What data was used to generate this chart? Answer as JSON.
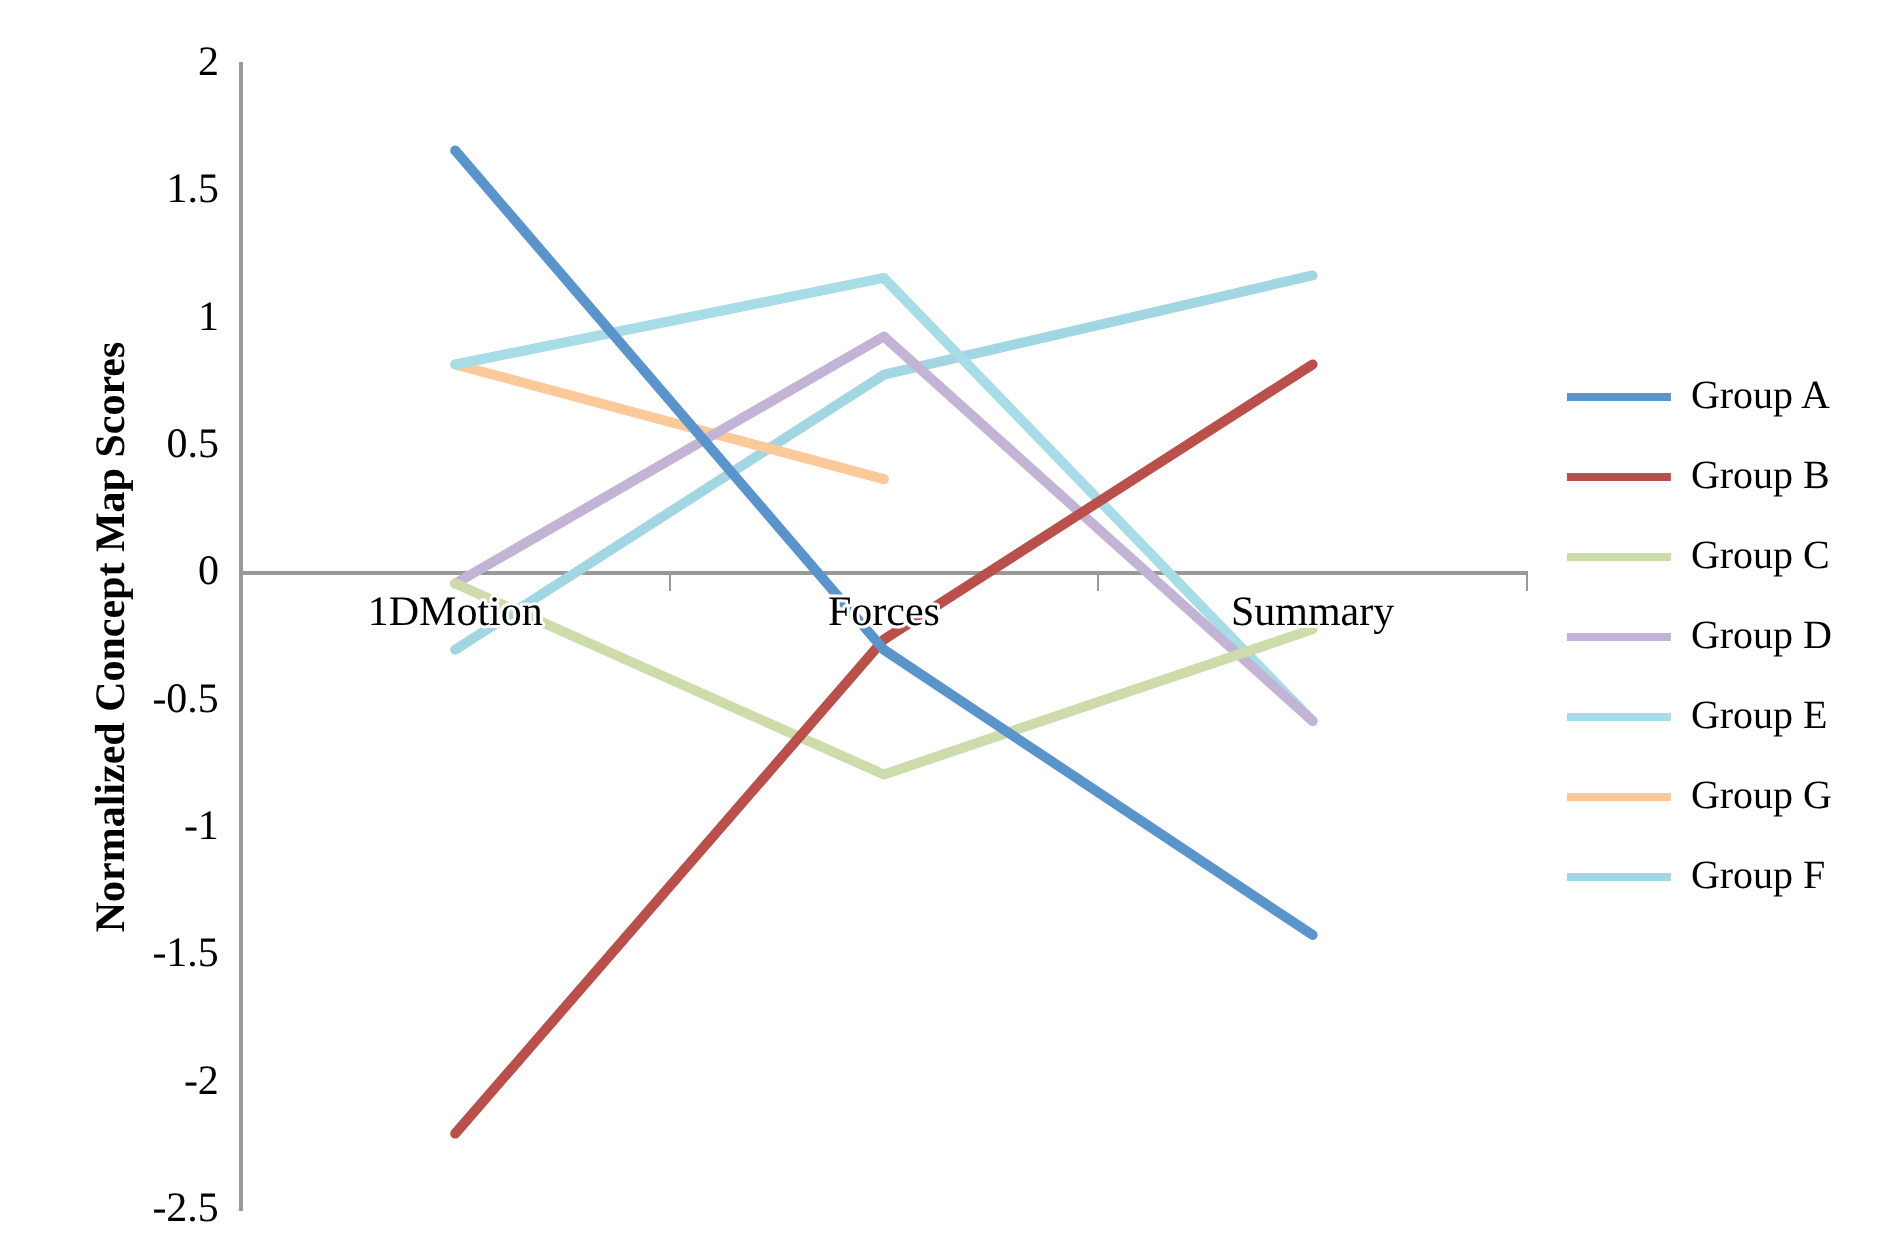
{
  "chart_data": {
    "type": "line",
    "ylabel": "Normalized Concept Map Scores",
    "categories": [
      "1DMotion",
      "Forces",
      "Summary"
    ],
    "series": [
      {
        "name": "Group A",
        "color": "#5b93cb",
        "values": [
          1.66,
          -0.3,
          -1.42
        ]
      },
      {
        "name": "Group B",
        "color": "#b9504c",
        "values": [
          -2.2,
          -0.26,
          0.82
        ]
      },
      {
        "name": "Group C",
        "color": "#cddcaa",
        "values": [
          -0.04,
          -0.79,
          -0.22
        ]
      },
      {
        "name": "Group D",
        "color": "#c3b4d6",
        "values": [
          -0.04,
          0.93,
          -0.58
        ]
      },
      {
        "name": "Group E",
        "color": "#a8dce6",
        "values": [
          0.82,
          1.16,
          -0.58
        ]
      },
      {
        "name": "Group G",
        "color": "#fbc99a",
        "values": [
          0.82,
          0.37,
          null
        ]
      },
      {
        "name": "Group F",
        "color": "#a3d6e3",
        "values": [
          -0.3,
          0.78,
          1.17
        ]
      }
    ],
    "ylim": [
      -2.5,
      2
    ],
    "yticks": [
      -2.5,
      -2,
      -1.5,
      -1,
      -0.5,
      0,
      0.5,
      1,
      1.5,
      2
    ],
    "grid": false,
    "legend": "right",
    "marker": "none",
    "line_style": "solid"
  }
}
